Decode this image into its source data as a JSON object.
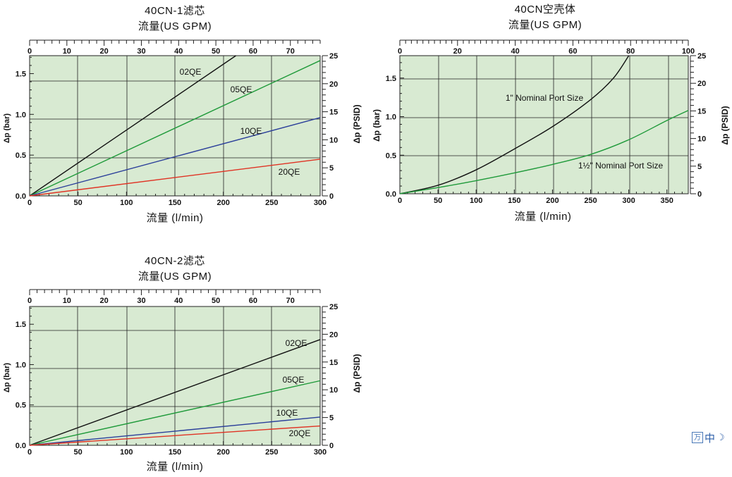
{
  "chart_data": [
    {
      "type": "line",
      "title": "40CN-1滤芯",
      "top_axis_label": "流量(US GPM)",
      "xlabel": "流量 (l/min)",
      "ylabel": "Δp (bar)",
      "ylabel_right": "Δp (PSID)",
      "xlim": [
        0,
        300
      ],
      "ylim": [
        0,
        1.72
      ],
      "top_xlim": [
        0,
        78
      ],
      "right_ylim": [
        0,
        25
      ],
      "x_ticks": [
        0,
        50,
        100,
        150,
        200,
        250,
        300
      ],
      "y_ticks": [
        0.0,
        0.5,
        1.0,
        1.5
      ],
      "top_ticks": [
        0,
        10,
        20,
        30,
        40,
        50,
        60,
        70
      ],
      "right_ticks": [
        0,
        5,
        10,
        15,
        20,
        25
      ],
      "grid": true,
      "series": [
        {
          "name": "02QE",
          "color": "#111111",
          "x": [
            0,
            213
          ],
          "y": [
            0,
            1.72
          ]
        },
        {
          "name": "05QE",
          "color": "#1f9a3a",
          "x": [
            0,
            300
          ],
          "y": [
            0,
            1.66
          ]
        },
        {
          "name": "10QE",
          "color": "#2b3f9a",
          "x": [
            0,
            300
          ],
          "y": [
            0,
            0.96
          ]
        },
        {
          "name": "20QE",
          "color": "#e03324",
          "x": [
            0,
            300
          ],
          "y": [
            0,
            0.45
          ]
        }
      ]
    },
    {
      "type": "line",
      "title": "40CN空壳体",
      "top_axis_label": "流量(US GPM)",
      "xlabel": "流量 (l/min)",
      "ylabel": "Δp (bar)",
      "ylabel_right": "Δp (PSID)",
      "xlim": [
        0,
        378
      ],
      "ylim": [
        0,
        1.79
      ],
      "top_xlim": [
        0,
        100
      ],
      "right_ylim": [
        0,
        25
      ],
      "x_ticks": [
        0,
        50,
        100,
        150,
        200,
        250,
        300,
        350
      ],
      "y_ticks": [
        0.0,
        0.5,
        1.0,
        1.5
      ],
      "top_ticks": [
        0,
        20,
        40,
        60,
        80,
        100
      ],
      "right_ticks": [
        0,
        5,
        10,
        15,
        20,
        25
      ],
      "grid": true,
      "series": [
        {
          "name": "1\" Nominal Port Size",
          "color": "#111111",
          "x": [
            0,
            50,
            100,
            150,
            200,
            250,
            280,
            300
          ],
          "y": [
            0.0,
            0.11,
            0.31,
            0.58,
            0.87,
            1.22,
            1.5,
            1.79
          ]
        },
        {
          "name": "1½\" Nominal Port Size",
          "color": "#1f9a3a",
          "x": [
            0,
            50,
            100,
            150,
            200,
            250,
            300,
            350,
            378
          ],
          "y": [
            0.0,
            0.08,
            0.17,
            0.27,
            0.38,
            0.51,
            0.7,
            0.95,
            1.08
          ]
        }
      ]
    },
    {
      "type": "line",
      "title": "40CN-2滤芯",
      "top_axis_label": "流量(US GPM)",
      "xlabel": "流量 (l/min)",
      "ylabel": "Δp (bar)",
      "ylabel_right": "Δp (PSID)",
      "xlim": [
        0,
        300
      ],
      "ylim": [
        0,
        1.72
      ],
      "top_xlim": [
        0,
        78
      ],
      "right_ylim": [
        0,
        25
      ],
      "x_ticks": [
        0,
        50,
        100,
        150,
        200,
        250,
        300
      ],
      "y_ticks": [
        0.0,
        0.5,
        1.0,
        1.5
      ],
      "top_ticks": [
        0,
        10,
        20,
        30,
        40,
        50,
        60,
        70
      ],
      "right_ticks": [
        0,
        5,
        10,
        15,
        20,
        25
      ],
      "grid": true,
      "series": [
        {
          "name": "02QE",
          "color": "#111111",
          "x": [
            0,
            300
          ],
          "y": [
            0,
            1.31
          ]
        },
        {
          "name": "05QE",
          "color": "#1f9a3a",
          "x": [
            0,
            300
          ],
          "y": [
            0,
            0.8
          ]
        },
        {
          "name": "10QE",
          "color": "#2b3f9a",
          "x": [
            0,
            300
          ],
          "y": [
            0,
            0.35
          ]
        },
        {
          "name": "20QE",
          "color": "#e03324",
          "x": [
            0,
            300
          ],
          "y": [
            0,
            0.24
          ]
        }
      ]
    }
  ],
  "widget": {
    "icon_text": "万",
    "lang": "中",
    "moon": "☽"
  }
}
